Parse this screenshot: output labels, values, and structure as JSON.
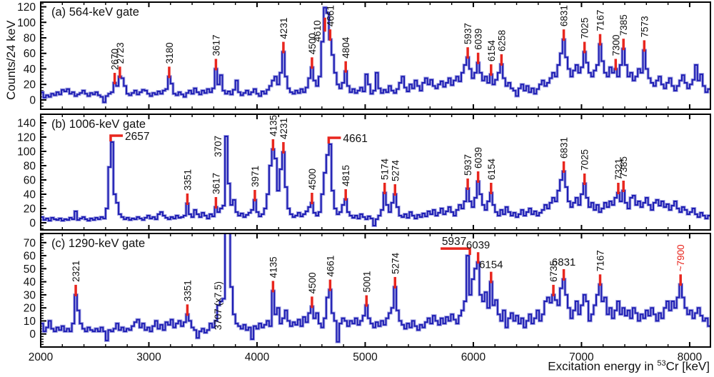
{
  "figure": {
    "y_axis_title": "Counts/24 keV",
    "x_axis_title_prefix": "Excitation energy in ",
    "x_axis_title_sup": "53",
    "x_axis_title_suffix": "Cr [keV]",
    "x_tick_labels": [
      "2000",
      "3000",
      "4000",
      "5000",
      "6000",
      "7000",
      "8000"
    ],
    "x_major_ticks": [
      2000,
      3000,
      4000,
      5000,
      6000,
      7000,
      8000
    ],
    "x_minor_step": 200
  },
  "colors": {
    "line": "#1e1eb4",
    "halo": "#a3a3e2",
    "marker": "#e8261e",
    "text": "#111111",
    "frame": "#000000"
  },
  "chart_data": [
    {
      "type": "histogram",
      "panel_label": "(a) 564-keV gate",
      "gate": "564 keV",
      "bin_start": 2000,
      "bin_width": 24,
      "x_range": [
        2000,
        8192
      ],
      "y_range": [
        -12,
        126
      ],
      "y_major_ticks": [
        0,
        20,
        40,
        60,
        80,
        100,
        120
      ],
      "y_minor_step": 4,
      "counts": [
        10,
        3,
        6,
        4,
        8,
        6,
        10,
        7,
        13,
        11,
        14,
        8,
        10,
        5,
        7,
        9,
        12,
        8,
        5,
        9,
        7,
        10,
        6,
        4,
        -3,
        5,
        8,
        10,
        22,
        18,
        30,
        28,
        18,
        8,
        6,
        9,
        12,
        7,
        10,
        13,
        12,
        8,
        5,
        9,
        7,
        11,
        8,
        12,
        14,
        30,
        21,
        8,
        6,
        10,
        7,
        4,
        9,
        12,
        8,
        15,
        10,
        7,
        12,
        9,
        14,
        10,
        15,
        40,
        20,
        32,
        12,
        8,
        11,
        7,
        13,
        25,
        10,
        6,
        9,
        12,
        7,
        10,
        14,
        8,
        5,
        11,
        8,
        13,
        18,
        25,
        30,
        20,
        35,
        62,
        30,
        15,
        10,
        8,
        12,
        9,
        14,
        10,
        16,
        28,
        42,
        25,
        18,
        30,
        75,
        119,
        112,
        78,
        58,
        35,
        20,
        15,
        22,
        37,
        18,
        10,
        14,
        9,
        12,
        16,
        11,
        33,
        20,
        8,
        12,
        35,
        15,
        9,
        13,
        10,
        18,
        12,
        9,
        14,
        22,
        30,
        16,
        11,
        20,
        15,
        25,
        18,
        12,
        22,
        28,
        20,
        26,
        18,
        15,
        20,
        24,
        17,
        22,
        28,
        19,
        25,
        30,
        24,
        35,
        45,
        55,
        40,
        28,
        35,
        48,
        35,
        25,
        30,
        22,
        33,
        20,
        26,
        35,
        46,
        28,
        18,
        22,
        15,
        12,
        5,
        15,
        20,
        12,
        18,
        10,
        15,
        8,
        14,
        20,
        25,
        18,
        22,
        28,
        35,
        30,
        45,
        60,
        78,
        55,
        40,
        30,
        38,
        45,
        35,
        42,
        62,
        48,
        35,
        30,
        38,
        45,
        72,
        50,
        35,
        30,
        42,
        35,
        40,
        30,
        45,
        66,
        45,
        30,
        35,
        25,
        30,
        40,
        35,
        64,
        40,
        28,
        22,
        18,
        25,
        30,
        20,
        15,
        22,
        28,
        18,
        12,
        18,
        25,
        32,
        22,
        15,
        20,
        26,
        45,
        25,
        33,
        18,
        10,
        14
      ],
      "peaks": [
        {
          "label": "2670",
          "energy": 2670,
          "style": "v"
        },
        {
          "label": "2723",
          "energy": 2723,
          "style": "v"
        },
        {
          "label": "3180",
          "energy": 3180,
          "style": "v"
        },
        {
          "label": "3617",
          "energy": 3617,
          "style": "v"
        },
        {
          "label": "4231",
          "energy": 4231,
          "style": "v"
        },
        {
          "label": "4500",
          "energy": 4500,
          "style": "v"
        },
        {
          "label": "4610",
          "energy": 4610,
          "style": "v-plain",
          "dx": -11,
          "label_y": 75,
          "tick_v": [
            88,
            106
          ]
        },
        {
          "label": "4661",
          "energy": 4661,
          "style": "v"
        },
        {
          "label": "4804",
          "energy": 4804,
          "style": "v"
        },
        {
          "label": "5937",
          "energy": 5937,
          "style": "v"
        },
        {
          "label": "6039",
          "energy": 6039,
          "style": "v"
        },
        {
          "label": "6154",
          "energy": 6154,
          "style": "v"
        },
        {
          "label": "6258",
          "energy": 6258,
          "style": "v"
        },
        {
          "label": "6831",
          "energy": 6831,
          "style": "v"
        },
        {
          "label": "7025",
          "energy": 7025,
          "style": "v"
        },
        {
          "label": "7167",
          "energy": 7167,
          "style": "v"
        },
        {
          "label": "7300",
          "energy": 7300,
          "style": "v"
        },
        {
          "label": "7385",
          "energy": 7385,
          "style": "v"
        },
        {
          "label": "7573",
          "energy": 7573,
          "style": "v"
        }
      ]
    },
    {
      "type": "histogram",
      "panel_label": "(b) 1006-keV gate",
      "gate": "1006 keV",
      "bin_start": 2000,
      "bin_width": 24,
      "x_range": [
        2000,
        8192
      ],
      "y_range": [
        -10,
        152
      ],
      "y_major_ticks": [
        0,
        20,
        40,
        60,
        80,
        100,
        120,
        140
      ],
      "y_minor_step": 4,
      "counts": [
        8,
        4,
        6,
        3,
        7,
        5,
        4,
        6,
        3,
        5,
        4,
        7,
        5,
        16,
        4,
        6,
        8,
        5,
        3,
        6,
        4,
        7,
        5,
        8,
        6,
        20,
        78,
        113,
        40,
        28,
        12,
        8,
        5,
        7,
        4,
        6,
        5,
        8,
        6,
        4,
        7,
        10,
        6,
        8,
        5,
        12,
        15,
        10,
        7,
        5,
        8,
        6,
        10,
        7,
        8,
        10,
        27,
        12,
        8,
        18,
        12,
        8,
        14,
        10,
        6,
        12,
        9,
        22,
        15,
        20,
        24,
        121,
        55,
        25,
        32,
        15,
        10,
        13,
        8,
        11,
        14,
        18,
        32,
        15,
        9,
        12,
        20,
        40,
        80,
        103,
        90,
        45,
        75,
        99,
        50,
        20,
        12,
        8,
        10,
        14,
        9,
        12,
        16,
        22,
        28,
        14,
        10,
        15,
        40,
        70,
        95,
        110,
        45,
        20,
        12,
        15,
        25,
        33,
        15,
        10,
        7,
        10,
        6,
        12,
        8,
        5,
        9,
        6,
        -4,
        5,
        10,
        18,
        42,
        25,
        15,
        28,
        40,
        22,
        10,
        8,
        12,
        7,
        15,
        10,
        6,
        11,
        8,
        13,
        9,
        16,
        12,
        18,
        10,
        14,
        20,
        12,
        16,
        22,
        15,
        10,
        18,
        25,
        20,
        30,
        48,
        30,
        22,
        35,
        58,
        40,
        25,
        18,
        30,
        42,
        25,
        15,
        10,
        18,
        12,
        22,
        15,
        10,
        14,
        8,
        12,
        18,
        10,
        15,
        20,
        12,
        16,
        10,
        14,
        18,
        25,
        20,
        28,
        35,
        30,
        45,
        60,
        72,
        50,
        30,
        22,
        28,
        35,
        25,
        40,
        55,
        35,
        22,
        28,
        18,
        25,
        15,
        20,
        28,
        22,
        30,
        25,
        35,
        42,
        30,
        45,
        28,
        20,
        35,
        38,
        25,
        30,
        22,
        28,
        35,
        25,
        18,
        28,
        32,
        24,
        30,
        22,
        26,
        18,
        24,
        30,
        20,
        15,
        22,
        18,
        12,
        15,
        20,
        12,
        8,
        14,
        10,
        6,
        10
      ],
      "peaks": [
        {
          "label": "2657",
          "energy": 2657,
          "style": "bracket-right"
        },
        {
          "label": "3351",
          "energy": 3351,
          "style": "v"
        },
        {
          "label": "3617",
          "energy": 3617,
          "style": "v"
        },
        {
          "label": "3707",
          "energy": 3707,
          "style": "v-plain",
          "dx": -12,
          "label_y": 92
        },
        {
          "label": "3971",
          "energy": 3971,
          "style": "v"
        },
        {
          "label": "4135",
          "energy": 4135,
          "style": "v"
        },
        {
          "label": "4231",
          "energy": 4231,
          "style": "v"
        },
        {
          "label": "4500",
          "energy": 4500,
          "style": "v"
        },
        {
          "label": "4661",
          "energy": 4661,
          "style": "bracket-right"
        },
        {
          "label": "4815",
          "energy": 4815,
          "style": "v"
        },
        {
          "label": "5174",
          "energy": 5174,
          "style": "v"
        },
        {
          "label": "5274",
          "energy": 5274,
          "style": "v"
        },
        {
          "label": "5937",
          "energy": 5937,
          "style": "v"
        },
        {
          "label": "6039",
          "energy": 6039,
          "style": "v"
        },
        {
          "label": "6154",
          "energy": 6154,
          "style": "v"
        },
        {
          "label": "6831",
          "energy": 6831,
          "style": "v"
        },
        {
          "label": "7025",
          "energy": 7025,
          "style": "v"
        },
        {
          "label": "7321",
          "energy": 7321,
          "style": "v"
        },
        {
          "label": "7385",
          "energy": 7385,
          "style": "v"
        }
      ]
    },
    {
      "type": "histogram",
      "panel_label": "(c) 1290-keV gate",
      "gate": "1290 keV",
      "bin_start": 2000,
      "bin_width": 24,
      "x_range": [
        2000,
        8192
      ],
      "y_range": [
        -10,
        77
      ],
      "y_major_ticks": [
        0,
        10,
        20,
        30,
        40,
        50,
        60,
        70
      ],
      "y_minor_step": 2,
      "counts": [
        8,
        2,
        5,
        10,
        4,
        2,
        5,
        3,
        6,
        2,
        4,
        2,
        8,
        30,
        18,
        8,
        4,
        2,
        5,
        3,
        2,
        4,
        2,
        5,
        2,
        -5,
        3,
        2,
        4,
        8,
        3,
        5,
        2,
        4,
        3,
        6,
        9,
        11,
        5,
        8,
        3,
        5,
        2,
        6,
        10,
        4,
        7,
        3,
        9,
        7,
        11,
        5,
        8,
        10,
        6,
        9,
        15,
        10,
        5,
        3,
        -3,
        2,
        4,
        1,
        3,
        8,
        5,
        10,
        22,
        25,
        27,
        95,
        90,
        36,
        15,
        8,
        6,
        4,
        7,
        3,
        5,
        -4,
        6,
        4,
        8,
        5,
        7,
        10,
        6,
        33,
        15,
        20,
        8,
        12,
        18,
        10,
        6,
        9,
        7,
        11,
        6,
        13,
        9,
        16,
        21,
        12,
        16,
        8,
        5,
        12,
        28,
        34,
        16,
        10,
        -6,
        8,
        12,
        10,
        6,
        10,
        8,
        12,
        7,
        10,
        14,
        22,
        12,
        8,
        5,
        9,
        6,
        10,
        7,
        12,
        16,
        20,
        36,
        18,
        10,
        7,
        4,
        8,
        5,
        10,
        6,
        3,
        7,
        5,
        9,
        12,
        8,
        14,
        10,
        7,
        12,
        8,
        13,
        10,
        15,
        11,
        8,
        14,
        18,
        25,
        60,
        30,
        42,
        50,
        55,
        30,
        25,
        32,
        20,
        40,
        22,
        26,
        15,
        10,
        18,
        5,
        12,
        16,
        10,
        14,
        8,
        12,
        5,
        10,
        15,
        8,
        12,
        18,
        10,
        15,
        25,
        28,
        24,
        30,
        26,
        22,
        35,
        42,
        30,
        20,
        12,
        18,
        25,
        15,
        22,
        30,
        25,
        10,
        15,
        22,
        30,
        38,
        25,
        28,
        15,
        20,
        12,
        18,
        25,
        15,
        20,
        14,
        18,
        12,
        20,
        16,
        10,
        15,
        12,
        18,
        14,
        20,
        15,
        10,
        16,
        12,
        20,
        25,
        18,
        25,
        20,
        28,
        38,
        28,
        20,
        15,
        18,
        12,
        16,
        20,
        14,
        10,
        12,
        6
      ],
      "peaks": [
        {
          "label": "2321",
          "energy": 2321,
          "style": "v"
        },
        {
          "label": "3351",
          "energy": 3351,
          "style": "v"
        },
        {
          "label": "3707 (x7.5)",
          "energy": 3707,
          "style": "v-plain",
          "dx": -12,
          "label_y": 3
        },
        {
          "label": "4135",
          "energy": 4135,
          "style": "v"
        },
        {
          "label": "4500",
          "energy": 4500,
          "style": "v"
        },
        {
          "label": "4661",
          "energy": 4661,
          "style": "v"
        },
        {
          "label": "5001",
          "energy": 5001,
          "style": "v"
        },
        {
          "label": "5274",
          "energy": 5274,
          "style": "v"
        },
        {
          "label": "5937",
          "energy": 5937,
          "style": "bracket-left"
        },
        {
          "label": "6039",
          "energy": 6039,
          "style": "h"
        },
        {
          "label": "6154",
          "energy": 6154,
          "style": "h"
        },
        {
          "label": "6735",
          "energy": 6735,
          "style": "v"
        },
        {
          "label": "6831",
          "energy": 6831,
          "style": "h"
        },
        {
          "label": "7167",
          "energy": 7167,
          "style": "v"
        },
        {
          "label": "~7900",
          "energy": 7900,
          "style": "v",
          "color": "red"
        }
      ]
    }
  ]
}
